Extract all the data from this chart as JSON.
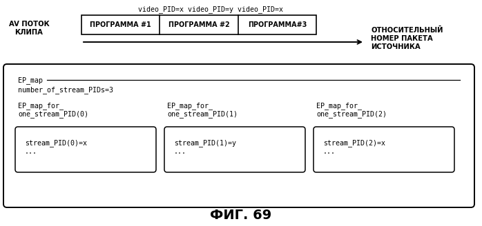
{
  "title": "ФИГ. 69",
  "bg_color": "#ffffff",
  "text_color": "#000000",
  "top_label": "video_PID=x video_PID=y video_PID=x",
  "av_label": "AV ПОТОК\nКЛИПА",
  "programs": [
    "ПРОГРАММА #1",
    "ПРОГРАММА #2",
    "ПРОГРАММА#3"
  ],
  "arrow_label": "ОТНОСИТЕЛЬНЫЙ\nНОМЕР ПАКЕТА\nИСТОЧНИКА",
  "ep_map_label": "EP_map",
  "num_streams_label": "number_of_stream_PIDs=3",
  "ep_map_for_labels": [
    "EP_map_for_\none_stream_PID(0)",
    "EP_map_for_\none_stream_PID(1)",
    "EP_map_for_\none_stream_PID(2)"
  ],
  "stream_pid_labels": [
    "stream_PID(0)=x\n...",
    "stream_PID(1)=y\n...",
    "stream_PID(2)=x\n..."
  ]
}
